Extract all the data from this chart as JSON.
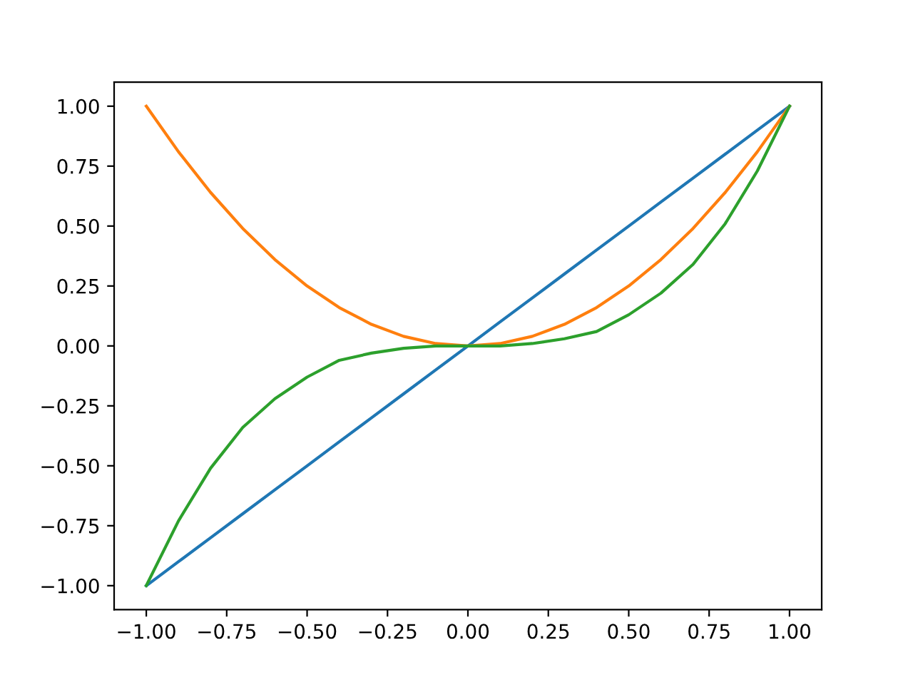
{
  "chart_data": {
    "type": "line",
    "x": [
      -1.0,
      -0.9,
      -0.8,
      -0.7,
      -0.6,
      -0.5,
      -0.4,
      -0.3,
      -0.2,
      -0.1,
      0.0,
      0.1,
      0.2,
      0.3,
      0.4,
      0.5,
      0.6,
      0.7,
      0.8,
      0.9,
      1.0
    ],
    "series": [
      {
        "color": "#1f77b4",
        "values": [
          -1.0,
          -0.9,
          -0.8,
          -0.7,
          -0.6,
          -0.5,
          -0.4,
          -0.3,
          -0.2,
          -0.1,
          0.0,
          0.1,
          0.2,
          0.3,
          0.4,
          0.5,
          0.6,
          0.7,
          0.8,
          0.9,
          1.0
        ]
      },
      {
        "color": "#ff7f0e",
        "values": [
          1.0,
          0.81,
          0.64,
          0.49,
          0.36,
          0.25,
          0.16,
          0.09,
          0.04,
          0.01,
          0.0,
          0.01,
          0.04,
          0.09,
          0.16,
          0.25,
          0.36,
          0.49,
          0.64,
          0.81,
          1.0
        ]
      },
      {
        "color": "#2ca02c",
        "values": [
          -1.0,
          -0.73,
          -0.51,
          -0.34,
          -0.22,
          -0.13,
          -0.06,
          -0.03,
          -0.01,
          0.0,
          0.0,
          0.0,
          0.01,
          0.03,
          0.06,
          0.13,
          0.22,
          0.34,
          0.51,
          0.73,
          1.0
        ]
      }
    ],
    "xlim": [
      -1.1,
      1.1
    ],
    "ylim": [
      -1.1,
      1.1
    ],
    "xticks": [
      {
        "value": -1.0,
        "label": "−1.00"
      },
      {
        "value": -0.75,
        "label": "−0.75"
      },
      {
        "value": -0.5,
        "label": "−0.50"
      },
      {
        "value": -0.25,
        "label": "−0.25"
      },
      {
        "value": 0.0,
        "label": "0.00"
      },
      {
        "value": 0.25,
        "label": "0.25"
      },
      {
        "value": 0.5,
        "label": "0.50"
      },
      {
        "value": 0.75,
        "label": "0.75"
      },
      {
        "value": 1.0,
        "label": "1.00"
      }
    ],
    "yticks": [
      {
        "value": -1.0,
        "label": "−1.00"
      },
      {
        "value": -0.75,
        "label": "−0.75"
      },
      {
        "value": -0.5,
        "label": "−0.50"
      },
      {
        "value": -0.25,
        "label": "−0.25"
      },
      {
        "value": 0.0,
        "label": "0.00"
      },
      {
        "value": 0.25,
        "label": "0.25"
      },
      {
        "value": 0.5,
        "label": "0.50"
      },
      {
        "value": 0.75,
        "label": "0.75"
      },
      {
        "value": 1.0,
        "label": "1.00"
      }
    ],
    "grid": false
  }
}
